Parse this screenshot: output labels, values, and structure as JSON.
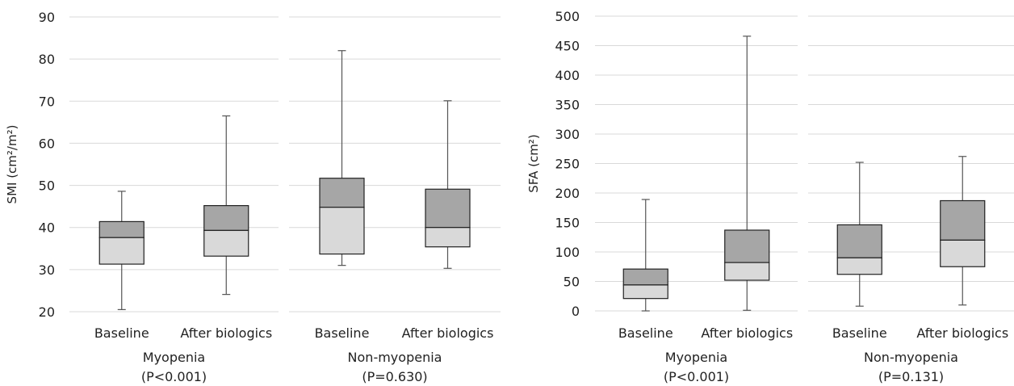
{
  "colors": {
    "box_upper": "#a6a6a6",
    "box_lower": "#d9d9d9",
    "grid": "#d9d9d9",
    "whisker": "#555555",
    "text": "#222222"
  },
  "chart_data": [
    {
      "type": "boxplot",
      "ylabel": "SMI (cm²/m²)",
      "ylim": [
        20,
        90
      ],
      "yticks": [
        "90",
        "80",
        "70",
        "60",
        "50",
        "40",
        "30",
        "20"
      ],
      "grid": true,
      "groups": [
        {
          "name": "Myopenia",
          "p_value": "(P<0.001)",
          "boxes": [
            {
              "category": "Baseline",
              "min": 20.5,
              "q1": 31.3,
              "median": 37.6,
              "q3": 41.4,
              "max": 48.6
            },
            {
              "category": "After biologics",
              "min": 24.1,
              "q1": 33.2,
              "median": 39.3,
              "q3": 45.2,
              "max": 66.5
            }
          ]
        },
        {
          "name": "Non-myopenia",
          "p_value": "(P=0.630)",
          "boxes": [
            {
              "category": "Baseline",
              "min": 31.0,
              "q1": 33.7,
              "median": 44.8,
              "q3": 51.7,
              "max": 82.0
            },
            {
              "category": "After biologics",
              "min": 30.3,
              "q1": 35.4,
              "median": 40.0,
              "q3": 49.1,
              "max": 70.1
            }
          ]
        }
      ]
    },
    {
      "type": "boxplot",
      "ylabel": "SFA (cm²)",
      "ylim": [
        0,
        500
      ],
      "yticks": [
        "500",
        "450",
        "400",
        "350",
        "300",
        "250",
        "200",
        "150",
        "100",
        "50",
        "0"
      ],
      "grid": true,
      "groups": [
        {
          "name": "Myopenia",
          "p_value": "(P<0.001)",
          "boxes": [
            {
              "category": "Baseline",
              "min": 0,
              "q1": 21,
              "median": 44,
              "q3": 71,
              "max": 189
            },
            {
              "category": "After biologics",
              "min": 1,
              "q1": 52,
              "median": 82,
              "q3": 137,
              "max": 466
            }
          ]
        },
        {
          "name": "Non-myopenia",
          "p_value": "(P=0.131)",
          "boxes": [
            {
              "category": "Baseline",
              "min": 8,
              "q1": 62,
              "median": 90,
              "q3": 146,
              "max": 252
            },
            {
              "category": "After biologics",
              "min": 10,
              "q1": 75,
              "median": 120,
              "q3": 187,
              "max": 262
            }
          ]
        }
      ]
    }
  ]
}
